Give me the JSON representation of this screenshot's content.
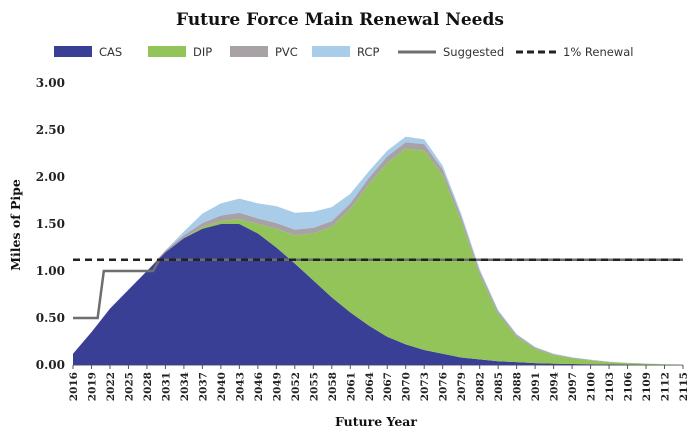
{
  "chart_data": {
    "type": "area",
    "title": "Future Force Main Renewal Needs",
    "xlabel": "Future Year",
    "ylabel": "Miles of Pipe",
    "ylim": [
      0,
      3.0
    ],
    "yticks": [
      "0.00",
      "0.50",
      "1.00",
      "1.50",
      "2.00",
      "2.50",
      "3.00"
    ],
    "x_tick_labels": [
      "2016",
      "2019",
      "2022",
      "2025",
      "2028",
      "2031",
      "2034",
      "2037",
      "2040",
      "2043",
      "2046",
      "2049",
      "2052",
      "2055",
      "2058",
      "2061",
      "2064",
      "2067",
      "2070",
      "2073",
      "2076",
      "2079",
      "2082",
      "2085",
      "2088",
      "2091",
      "2094",
      "2097",
      "2100",
      "2103",
      "2106",
      "2109",
      "2112",
      "2115"
    ],
    "x": [
      2016,
      2019,
      2022,
      2025,
      2028,
      2031,
      2034,
      2037,
      2040,
      2043,
      2046,
      2049,
      2052,
      2055,
      2058,
      2061,
      2064,
      2067,
      2070,
      2073,
      2076,
      2079,
      2082,
      2085,
      2088,
      2091,
      2094,
      2097,
      2100,
      2103,
      2106,
      2109,
      2112,
      2115
    ],
    "legend_position": "top",
    "series": [
      {
        "name": "CAS",
        "color": "#3a3f96",
        "kind": "area",
        "values": [
          0.12,
          0.35,
          0.6,
          0.8,
          1.0,
          1.2,
          1.35,
          1.45,
          1.5,
          1.5,
          1.4,
          1.25,
          1.08,
          0.9,
          0.72,
          0.56,
          0.42,
          0.3,
          0.22,
          0.16,
          0.12,
          0.08,
          0.06,
          0.04,
          0.03,
          0.02,
          0.015,
          0.01,
          0.008,
          0.005,
          0.004,
          0.003,
          0.002,
          0.001
        ]
      },
      {
        "name": "DIP",
        "color": "#92c45a",
        "kind": "area",
        "values": [
          0,
          0,
          0,
          0,
          0,
          0,
          0,
          0.02,
          0.03,
          0.05,
          0.1,
          0.2,
          0.3,
          0.5,
          0.75,
          1.1,
          1.5,
          1.85,
          2.08,
          2.12,
          1.9,
          1.45,
          0.9,
          0.5,
          0.27,
          0.15,
          0.09,
          0.06,
          0.04,
          0.025,
          0.016,
          0.01,
          0.005,
          0.003
        ]
      },
      {
        "name": "PVC",
        "color": "#a8a2a6",
        "kind": "area",
        "values": [
          0,
          0,
          0,
          0,
          0,
          0.02,
          0.03,
          0.04,
          0.06,
          0.07,
          0.06,
          0.06,
          0.06,
          0.06,
          0.06,
          0.06,
          0.07,
          0.07,
          0.07,
          0.07,
          0.06,
          0.05,
          0.04,
          0.03,
          0.02,
          0.015,
          0.01,
          0.008,
          0.006,
          0.004,
          0.003,
          0.002,
          0.001,
          0.001
        ]
      },
      {
        "name": "RCP",
        "color": "#a9cce8",
        "kind": "area",
        "values": [
          0,
          0,
          0,
          0,
          0,
          0,
          0.04,
          0.1,
          0.13,
          0.15,
          0.16,
          0.18,
          0.18,
          0.17,
          0.15,
          0.1,
          0.07,
          0.06,
          0.06,
          0.05,
          0.04,
          0.03,
          0.02,
          0.015,
          0.01,
          0.008,
          0.006,
          0.004,
          0.003,
          0.002,
          0.001,
          0.001,
          0.001,
          0.0
        ]
      },
      {
        "name": "Suggested",
        "color": "#6e6e6e",
        "kind": "step",
        "points": [
          [
            2016,
            0.5
          ],
          [
            2020,
            0.5
          ],
          [
            2021,
            1.0
          ],
          [
            2029,
            1.0
          ],
          [
            2030,
            1.12
          ],
          [
            2115,
            1.12
          ]
        ]
      },
      {
        "name": "1% Renewal",
        "color": "#222222",
        "kind": "dashed",
        "value": 1.12
      }
    ]
  }
}
